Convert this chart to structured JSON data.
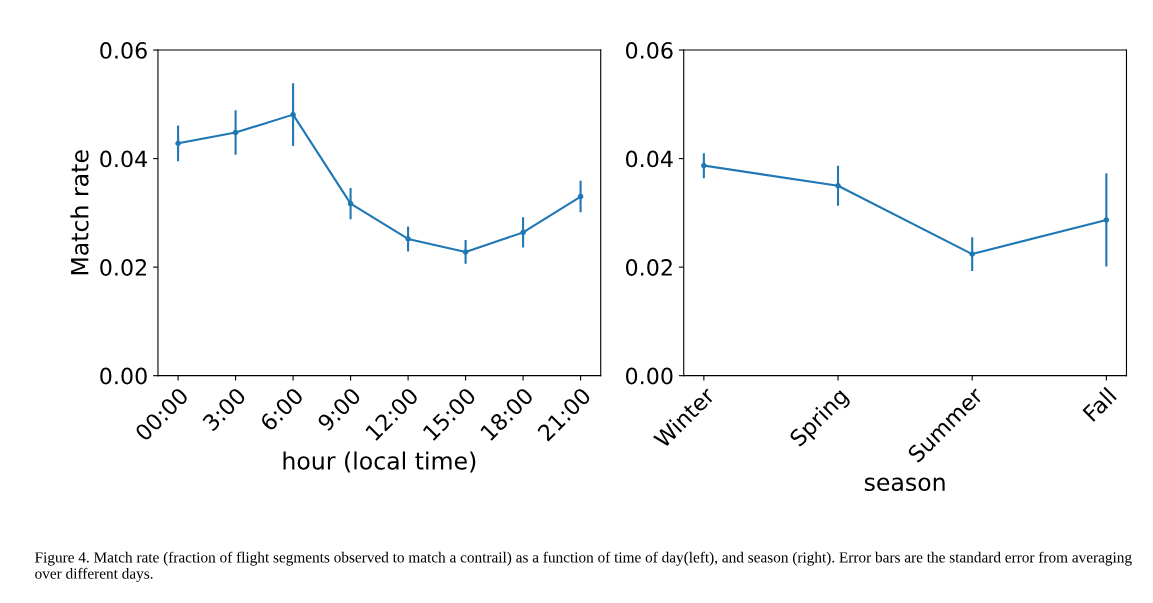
{
  "chart_data": [
    {
      "type": "line",
      "xlabel": "hour (local time)",
      "ylabel": "Match rate",
      "categories": [
        "00:00",
        "3:00",
        "6:00",
        "9:00",
        "12:00",
        "15:00",
        "18:00",
        "21:00"
      ],
      "series": [
        {
          "color": "#1f77b4",
          "values": [
            0.0428,
            0.0448,
            0.0481,
            0.0317,
            0.0252,
            0.0228,
            0.0264,
            0.033
          ],
          "errors": [
            0.0033,
            0.0041,
            0.0058,
            0.0029,
            0.0023,
            0.0022,
            0.0028,
            0.0029
          ]
        }
      ],
      "ylim": [
        0,
        0.06
      ],
      "yticks": [
        {
          "value": 0,
          "label": "0.00"
        },
        {
          "value": 0.02,
          "label": "0.02"
        },
        {
          "value": 0.04,
          "label": "0.04"
        },
        {
          "value": 0.06,
          "label": "0.06"
        }
      ],
      "marker": "circle",
      "line_style": "solid",
      "grid": false,
      "legend": false
    },
    {
      "type": "line",
      "xlabel": "season",
      "categories": [
        "Winter",
        "Spring",
        "Summer",
        "Fall"
      ],
      "series": [
        {
          "color": "#1f77b4",
          "values": [
            0.0387,
            0.035,
            0.0224,
            0.0287
          ],
          "errors": [
            0.0023,
            0.0037,
            0.0031,
            0.0086
          ]
        }
      ],
      "ylim": [
        0,
        0.06
      ],
      "yticks": [
        {
          "value": 0,
          "label": "0.00"
        },
        {
          "value": 0.02,
          "label": "0.02"
        },
        {
          "value": 0.04,
          "label": "0.04"
        },
        {
          "value": 0.06,
          "label": "0.06"
        }
      ],
      "marker": "circle",
      "line_style": "solid",
      "grid": false,
      "legend": false,
      "annotations": [
        "Figure 4. Match rate (fraction of flight segments observed to match a contrail) as a function of time of day(left), and season (right). Error bars are the standard error from averaging over different days."
      ]
    }
  ]
}
